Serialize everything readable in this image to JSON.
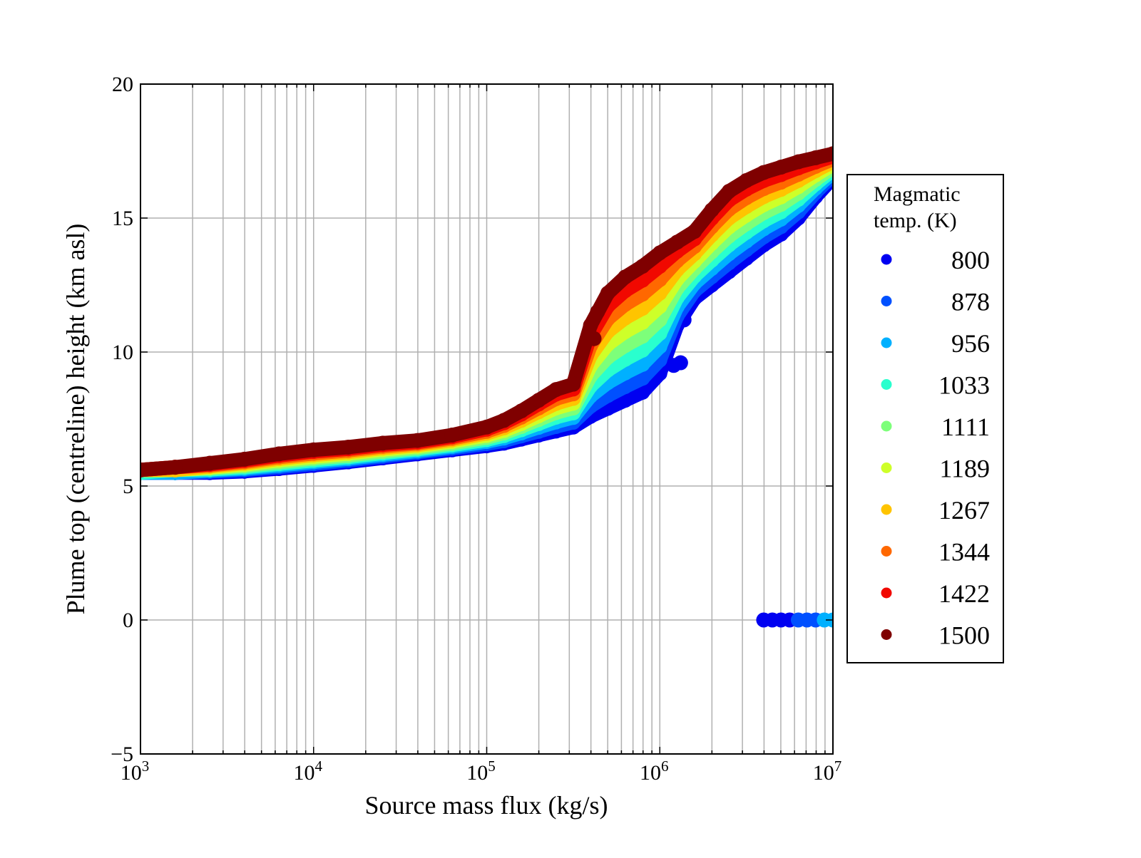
{
  "chart_data": {
    "type": "scatter",
    "title": "",
    "xlabel": "Source mass flux (kg/s)",
    "ylabel": "Plume top (centreline) height (km asl)",
    "xscale": "log",
    "xlim": [
      1000,
      10000000
    ],
    "ylim": [
      -5,
      20
    ],
    "grid": true,
    "x_ticks": [
      {
        "base": "10",
        "exp": "3",
        "value": 1000
      },
      {
        "base": "10",
        "exp": "4",
        "value": 10000
      },
      {
        "base": "10",
        "exp": "5",
        "value": 100000
      },
      {
        "base": "10",
        "exp": "6",
        "value": 1000000
      },
      {
        "base": "10",
        "exp": "7",
        "value": 10000000
      }
    ],
    "y_ticks": [
      {
        "label": "−5",
        "value": -5
      },
      {
        "label": "0",
        "value": 0
      },
      {
        "label": "5",
        "value": 5
      },
      {
        "label": "10",
        "value": 10
      },
      {
        "label": "15",
        "value": 15
      },
      {
        "label": "20",
        "value": 20
      }
    ],
    "legend": {
      "placement": "right-outside",
      "title_line1": "Magmatic",
      "title_line2": "temp. (K)"
    },
    "x_log10": [
      3.0,
      3.2,
      3.4,
      3.6,
      3.8,
      4.0,
      4.2,
      4.4,
      4.6,
      4.8,
      5.0,
      5.1,
      5.2,
      5.3,
      5.4,
      5.5,
      5.6,
      5.7,
      5.8,
      5.9,
      6.0,
      6.1,
      6.2,
      6.3,
      6.4,
      6.5,
      6.6,
      6.7,
      6.8,
      6.9,
      7.0
    ],
    "series": [
      {
        "name": "800",
        "color": "#0000f1",
        "y": [
          5.5,
          5.5,
          5.5,
          5.55,
          5.65,
          5.77,
          5.9,
          6.05,
          6.2,
          6.35,
          6.5,
          6.6,
          6.75,
          6.9,
          7.05,
          7.2,
          7.6,
          7.9,
          8.2,
          8.5,
          9.2,
          11.0,
          12.0,
          12.5,
          13.0,
          13.5,
          14.0,
          14.4,
          15.0,
          15.8,
          16.5
        ],
        "extra": [
          [
            6.02,
            9.5
          ],
          [
            6.08,
            9.5
          ],
          [
            6.12,
            9.6
          ],
          [
            6.1,
            11.1
          ],
          [
            6.14,
            11.2
          ],
          [
            6.6,
            0
          ],
          [
            6.65,
            0
          ],
          [
            6.7,
            0
          ],
          [
            6.75,
            0
          ]
        ]
      },
      {
        "name": "878",
        "color": "#0050ff",
        "y": [
          5.5,
          5.5,
          5.54,
          5.6,
          5.71,
          5.83,
          5.96,
          6.11,
          6.26,
          6.41,
          6.58,
          6.69,
          6.87,
          7.04,
          7.22,
          7.38,
          7.98,
          8.38,
          8.71,
          9.02,
          9.7,
          11.34,
          12.28,
          12.81,
          13.33,
          13.82,
          14.3,
          14.68,
          15.23,
          15.96,
          16.6
        ],
        "extra": [
          [
            6.8,
            0
          ],
          [
            6.85,
            0
          ],
          [
            6.9,
            0
          ]
        ]
      },
      {
        "name": "956",
        "color": "#00b0ff",
        "y": [
          5.5,
          5.5,
          5.58,
          5.65,
          5.77,
          5.9,
          6.02,
          6.17,
          6.31,
          6.47,
          6.66,
          6.79,
          6.98,
          7.19,
          7.39,
          7.56,
          8.36,
          8.86,
          9.22,
          9.54,
          10.2,
          11.69,
          12.56,
          13.12,
          13.67,
          14.14,
          14.6,
          14.96,
          15.47,
          16.12,
          16.7
        ],
        "extra": [
          [
            6.95,
            0
          ],
          [
            7.0,
            0
          ]
        ]
      },
      {
        "name": "1033",
        "color": "#29ffce",
        "y": [
          5.5,
          5.6,
          5.62,
          5.7,
          5.83,
          5.96,
          6.08,
          6.23,
          6.37,
          6.53,
          6.73,
          6.88,
          7.1,
          7.33,
          7.57,
          7.73,
          8.73,
          9.33,
          9.73,
          10.07,
          10.7,
          12.03,
          12.83,
          13.43,
          14.0,
          14.47,
          14.9,
          15.23,
          15.7,
          16.28,
          16.8
        ],
        "extra": []
      },
      {
        "name": "1111",
        "color": "#7dff7a",
        "y": [
          5.6,
          5.6,
          5.66,
          5.75,
          5.89,
          6.03,
          6.14,
          6.29,
          6.42,
          6.59,
          6.81,
          6.98,
          7.22,
          7.48,
          7.74,
          7.91,
          9.11,
          9.81,
          10.24,
          10.59,
          11.2,
          12.38,
          13.11,
          13.74,
          14.33,
          14.79,
          15.2,
          15.51,
          15.93,
          16.44,
          16.9
        ],
        "extra": []
      },
      {
        "name": "1189",
        "color": "#ceff29",
        "y": [
          5.6,
          5.6,
          5.69,
          5.8,
          5.96,
          6.09,
          6.21,
          6.36,
          6.48,
          6.66,
          6.89,
          7.07,
          7.33,
          7.62,
          7.91,
          8.09,
          9.49,
          10.29,
          10.76,
          11.11,
          11.7,
          12.72,
          13.39,
          14.06,
          14.67,
          15.11,
          15.5,
          15.79,
          16.17,
          16.61,
          17.0
        ],
        "extra": []
      },
      {
        "name": "1267",
        "color": "#ffc400",
        "y": [
          5.6,
          5.6,
          5.73,
          5.85,
          6.02,
          6.16,
          6.27,
          6.42,
          6.53,
          6.72,
          6.97,
          7.17,
          7.45,
          7.77,
          8.08,
          8.27,
          9.87,
          10.77,
          11.27,
          11.63,
          12.2,
          13.07,
          13.67,
          14.37,
          15.0,
          15.43,
          15.8,
          16.07,
          16.4,
          16.77,
          17.1
        ],
        "extra": []
      },
      {
        "name": "1344",
        "color": "#ff6800",
        "y": [
          5.6,
          5.7,
          5.77,
          5.9,
          6.08,
          6.22,
          6.33,
          6.48,
          6.59,
          6.78,
          7.04,
          7.26,
          7.57,
          7.91,
          8.26,
          8.44,
          10.24,
          11.24,
          11.78,
          12.16,
          12.7,
          13.41,
          13.94,
          14.68,
          15.33,
          15.76,
          16.1,
          16.34,
          16.63,
          16.93,
          17.2
        ],
        "extra": []
      },
      {
        "name": "1422",
        "color": "#f10800",
        "y": [
          5.6,
          5.7,
          5.81,
          5.95,
          6.14,
          6.29,
          6.39,
          6.54,
          6.64,
          6.84,
          7.12,
          7.36,
          7.68,
          8.06,
          8.43,
          8.62,
          10.62,
          11.72,
          12.29,
          12.68,
          13.2,
          13.76,
          14.22,
          14.99,
          15.67,
          16.08,
          16.4,
          16.62,
          16.87,
          17.09,
          17.3
        ],
        "extra": []
      },
      {
        "name": "1500",
        "color": "#7f0000",
        "y": [
          5.6,
          5.7,
          5.85,
          6.0,
          6.2,
          6.35,
          6.45,
          6.6,
          6.7,
          6.9,
          7.2,
          7.45,
          7.8,
          8.2,
          8.6,
          8.8,
          11.0,
          12.2,
          12.8,
          13.2,
          13.7,
          14.1,
          14.5,
          15.3,
          16.0,
          16.4,
          16.7,
          16.9,
          17.1,
          17.25,
          17.4
        ],
        "extra": [
          [
            5.62,
            10.5
          ],
          [
            5.64,
            11.5
          ]
        ]
      }
    ]
  }
}
